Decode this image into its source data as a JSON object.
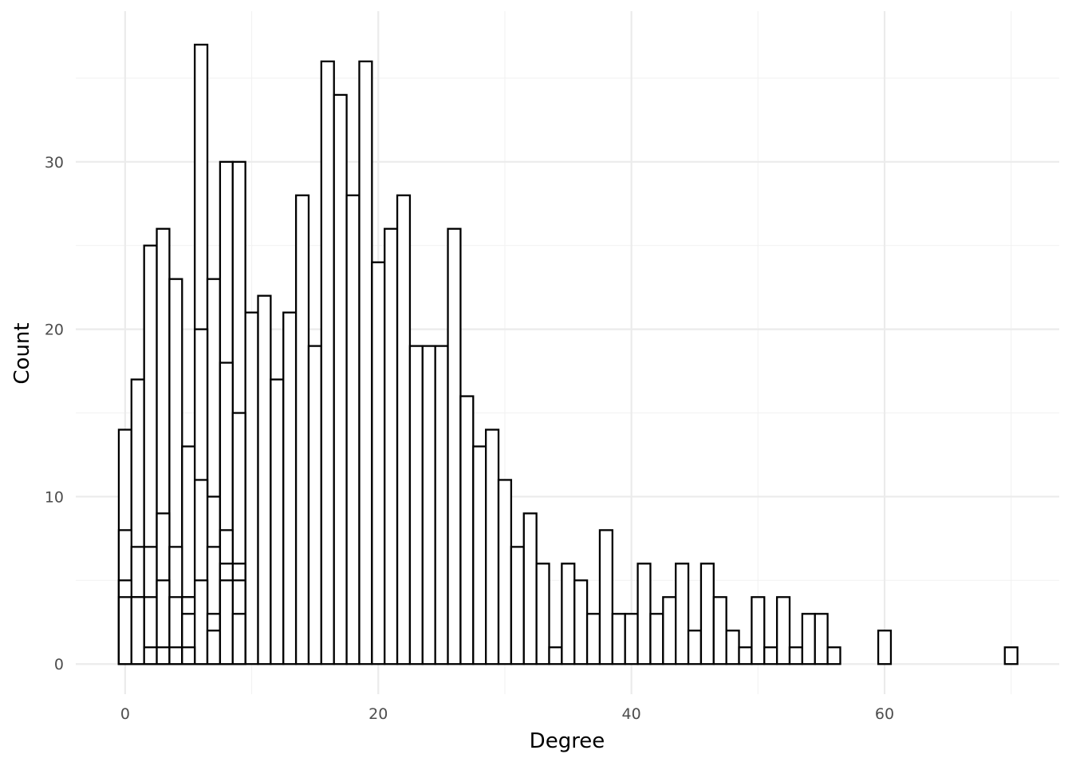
{
  "chart_data": {
    "type": "bar",
    "title": "",
    "xlabel": "Degree",
    "ylabel": "Count",
    "xlim": [
      -3.9,
      73.8
    ],
    "ylim": [
      -1.8,
      39
    ],
    "x_ticks": [
      0,
      20,
      40,
      60
    ],
    "y_ticks": [
      0,
      10,
      20,
      30
    ],
    "grid": true,
    "legend": "none",
    "series": [
      {
        "x": [
          0,
          1,
          2,
          3,
          4,
          5,
          6,
          7,
          8,
          9,
          10,
          11,
          12,
          13,
          14,
          15,
          16,
          17,
          18,
          19,
          20,
          21,
          22,
          23,
          24,
          25,
          26,
          27,
          28,
          29,
          30,
          31,
          32,
          33,
          34,
          35,
          36,
          37,
          38,
          39,
          40,
          41,
          42,
          43,
          44,
          45,
          46,
          47,
          48,
          49,
          50,
          51,
          52,
          53,
          54,
          55,
          56,
          60,
          70
        ],
        "values": [
          14,
          17,
          25,
          26,
          23,
          13,
          37,
          23,
          30,
          30,
          21,
          22,
          17,
          21,
          28,
          19,
          36,
          34,
          28,
          36,
          24,
          26,
          28,
          19,
          19,
          19,
          26,
          16,
          13,
          14,
          11,
          7,
          9,
          6,
          1,
          6,
          5,
          3,
          8,
          3,
          3,
          6,
          3,
          4,
          6,
          2,
          6,
          4,
          2,
          1,
          4,
          1,
          4,
          1,
          3,
          3,
          1,
          2,
          1
        ]
      },
      {
        "x": [
          0,
          1,
          2,
          3,
          4,
          5,
          6,
          7,
          8,
          9
        ],
        "values": [
          8,
          7,
          7,
          9,
          7,
          4,
          20,
          10,
          18,
          15
        ]
      },
      {
        "x": [
          0,
          1,
          2,
          3,
          4,
          5,
          6,
          7,
          8,
          9
        ],
        "values": [
          5,
          4,
          4,
          5,
          4,
          4,
          11,
          7,
          8,
          6
        ]
      },
      {
        "x": [
          0,
          1,
          2,
          3,
          4,
          5,
          6,
          7,
          8,
          9
        ],
        "values": [
          4,
          4,
          1,
          1,
          1,
          3,
          5,
          3,
          6,
          5
        ]
      },
      {
        "x": [
          0,
          1,
          2,
          3,
          4,
          5,
          6,
          7,
          8,
          9
        ],
        "values": [
          0,
          0,
          0,
          0,
          0,
          1,
          0,
          2,
          5,
          3
        ]
      }
    ]
  }
}
